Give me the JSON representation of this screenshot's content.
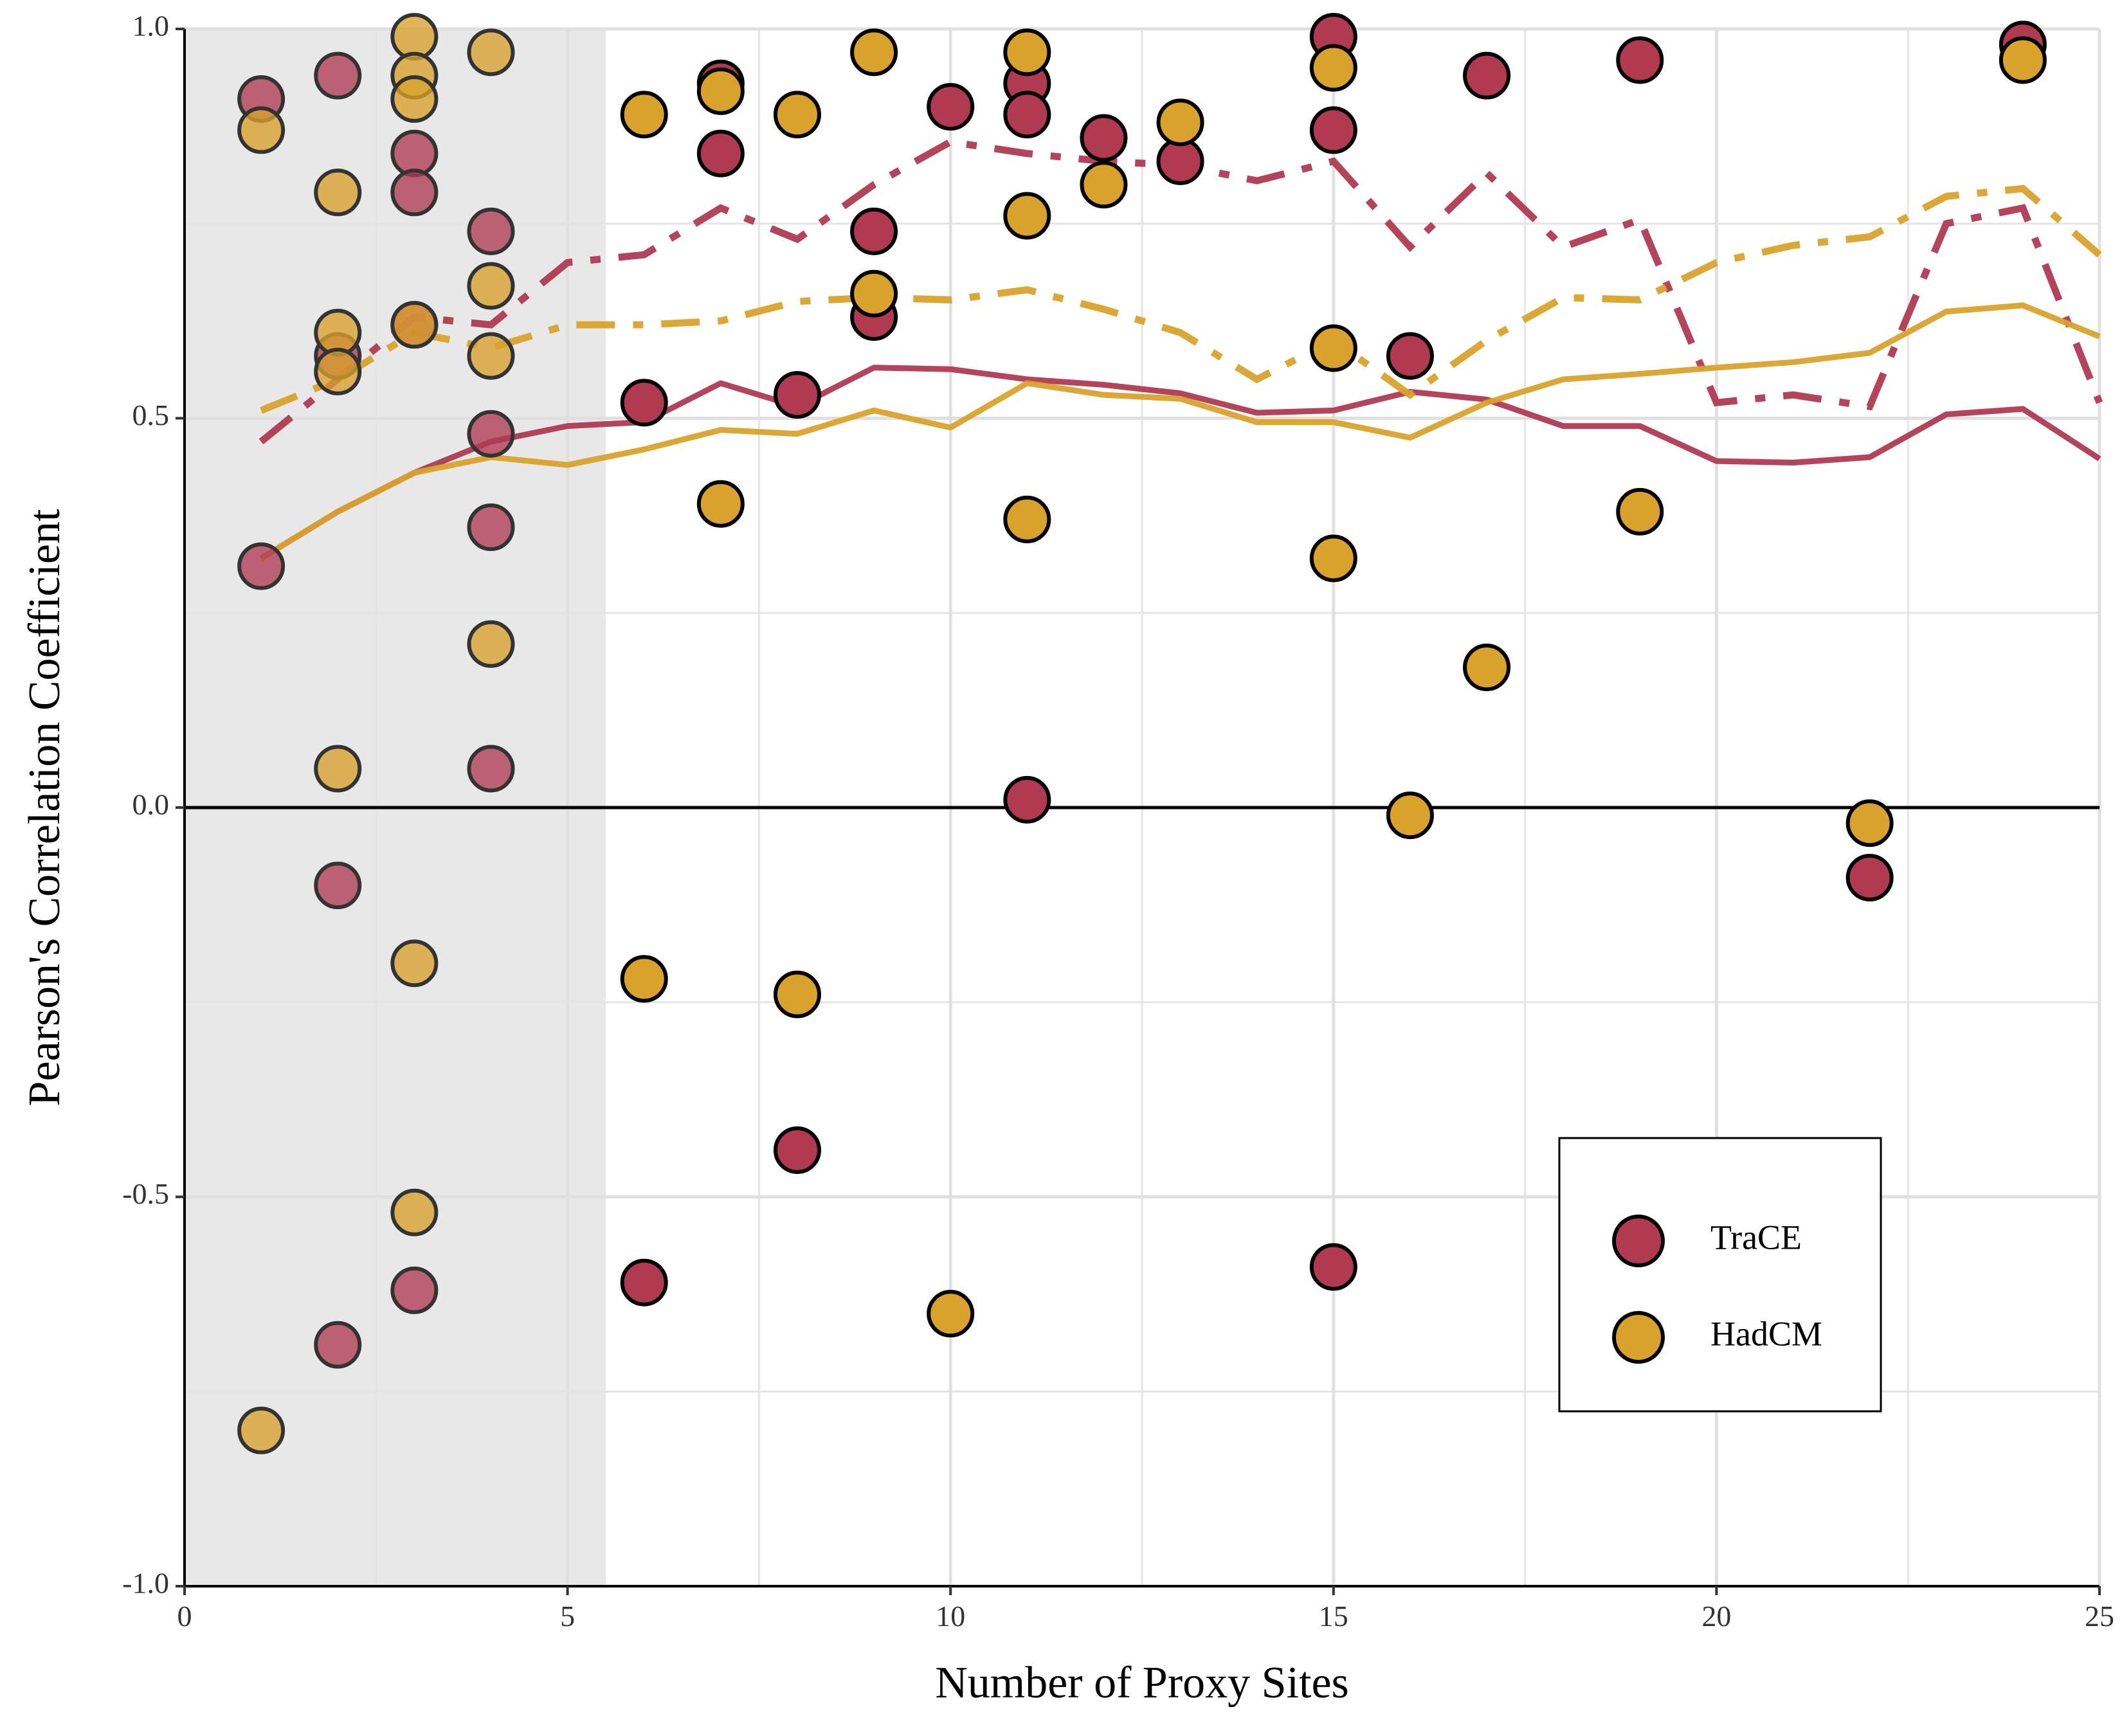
{
  "chart_data": {
    "type": "scatter",
    "xlabel": "Number of Proxy Sites",
    "ylabel": "Pearson's Correlation Coefficient",
    "xlim": [
      0,
      25
    ],
    "ylim": [
      -1.0,
      1.0
    ],
    "xticks": [
      0,
      5,
      10,
      15,
      20,
      25
    ],
    "xtick_labels": [
      "0",
      "5",
      "10",
      "15",
      "20",
      "25"
    ],
    "yticks": [
      -1.0,
      -0.5,
      0.0,
      0.5,
      1.0
    ],
    "ytick_labels": [
      "-1.0",
      "-0.5",
      "0.0",
      "0.5",
      "1.0"
    ],
    "grid": true,
    "zero_line": true,
    "shaded_region": {
      "x_from": 0,
      "x_to": 5.5,
      "color": "#e8e8e8"
    },
    "legend": {
      "position": "bottom-right",
      "entries": [
        "TraCE",
        "HadCM"
      ]
    },
    "series": [
      {
        "name": "TraCE",
        "color": "#b03a52",
        "points": [
          [
            1,
            0.91
          ],
          [
            1,
            0.31
          ],
          [
            2,
            0.94
          ],
          [
            2,
            0.58
          ],
          [
            2,
            -0.1
          ],
          [
            2,
            -0.69
          ],
          [
            3,
            0.84
          ],
          [
            3,
            0.79
          ],
          [
            3,
            0.62
          ],
          [
            3,
            -0.62
          ],
          [
            4,
            0.74
          ],
          [
            4,
            0.48
          ],
          [
            4,
            0.36
          ],
          [
            4,
            0.05
          ],
          [
            6,
            0.52
          ],
          [
            6,
            -0.61
          ],
          [
            7,
            0.93
          ],
          [
            7,
            0.84
          ],
          [
            8,
            0.53
          ],
          [
            8,
            -0.44
          ],
          [
            9,
            0.74
          ],
          [
            9,
            0.63
          ],
          [
            10,
            0.9
          ],
          [
            11,
            0.93
          ],
          [
            11,
            0.89
          ],
          [
            11,
            0.01
          ],
          [
            12,
            0.86
          ],
          [
            13,
            0.83
          ],
          [
            15,
            0.99
          ],
          [
            15,
            0.87
          ],
          [
            15,
            -0.59
          ],
          [
            16,
            0.58
          ],
          [
            17,
            0.94
          ],
          [
            19,
            0.96
          ],
          [
            22,
            -0.09
          ],
          [
            24,
            0.98
          ]
        ],
        "median_line": [
          [
            1,
            0.32
          ],
          [
            2,
            0.38
          ],
          [
            3,
            0.43
          ],
          [
            4,
            0.47
          ],
          [
            5,
            0.49
          ],
          [
            6,
            0.495
          ],
          [
            7,
            0.545
          ],
          [
            8,
            0.515
          ],
          [
            9,
            0.565
          ],
          [
            10,
            0.563
          ],
          [
            11,
            0.55
          ],
          [
            12,
            0.543
          ],
          [
            13,
            0.532
          ],
          [
            14,
            0.507
          ],
          [
            15,
            0.51
          ],
          [
            16,
            0.534
          ],
          [
            17,
            0.524
          ],
          [
            18,
            0.49
          ],
          [
            19,
            0.49
          ],
          [
            20,
            0.445
          ],
          [
            21,
            0.443
          ],
          [
            22,
            0.45
          ],
          [
            23,
            0.505
          ],
          [
            24,
            0.512
          ],
          [
            25,
            0.448
          ]
        ],
        "dashed_line": [
          [
            1,
            0.47
          ],
          [
            2,
            0.55
          ],
          [
            3,
            0.63
          ],
          [
            4,
            0.62
          ],
          [
            5,
            0.7
          ],
          [
            6,
            0.71
          ],
          [
            7,
            0.77
          ],
          [
            8,
            0.73
          ],
          [
            9,
            0.8
          ],
          [
            10,
            0.855
          ],
          [
            11,
            0.84
          ],
          [
            12,
            0.83
          ],
          [
            13,
            0.825
          ],
          [
            14,
            0.805
          ],
          [
            15,
            0.83
          ],
          [
            16,
            0.72
          ],
          [
            17,
            0.815
          ],
          [
            18,
            0.72
          ],
          [
            19,
            0.755
          ],
          [
            20,
            0.52
          ],
          [
            21,
            0.53
          ],
          [
            22,
            0.515
          ],
          [
            23,
            0.75
          ],
          [
            24,
            0.77
          ],
          [
            25,
            0.52
          ]
        ]
      },
      {
        "name": "HadCM",
        "color": "#d9a22c",
        "points": [
          [
            1,
            0.87
          ],
          [
            1,
            -0.8
          ],
          [
            2,
            0.79
          ],
          [
            2,
            0.61
          ],
          [
            2,
            0.56
          ],
          [
            2,
            0.05
          ],
          [
            3,
            0.99
          ],
          [
            3,
            0.94
          ],
          [
            3,
            0.91
          ],
          [
            3,
            0.62
          ],
          [
            3,
            -0.2
          ],
          [
            3,
            -0.52
          ],
          [
            4,
            0.97
          ],
          [
            4,
            0.67
          ],
          [
            4,
            0.58
          ],
          [
            4,
            0.21
          ],
          [
            6,
            0.89
          ],
          [
            6,
            -0.22
          ],
          [
            7,
            0.92
          ],
          [
            7,
            0.39
          ],
          [
            8,
            0.89
          ],
          [
            8,
            -0.24
          ],
          [
            9,
            0.97
          ],
          [
            9,
            0.66
          ],
          [
            10,
            -0.65
          ],
          [
            11,
            0.97
          ],
          [
            11,
            0.76
          ],
          [
            11,
            0.37
          ],
          [
            12,
            0.8
          ],
          [
            13,
            0.88
          ],
          [
            15,
            0.95
          ],
          [
            15,
            0.59
          ],
          [
            15,
            0.32
          ],
          [
            16,
            -0.01
          ],
          [
            17,
            0.18
          ],
          [
            19,
            0.38
          ],
          [
            22,
            -0.02
          ],
          [
            24,
            0.96
          ]
        ],
        "median_line": [
          [
            1,
            0.32
          ],
          [
            2,
            0.38
          ],
          [
            3,
            0.43
          ],
          [
            4,
            0.45
          ],
          [
            5,
            0.44
          ],
          [
            6,
            0.46
          ],
          [
            7,
            0.485
          ],
          [
            8,
            0.48
          ],
          [
            9,
            0.51
          ],
          [
            10,
            0.488
          ],
          [
            11,
            0.545
          ],
          [
            12,
            0.53
          ],
          [
            13,
            0.525
          ],
          [
            14,
            0.495
          ],
          [
            15,
            0.495
          ],
          [
            16,
            0.475
          ],
          [
            17,
            0.52
          ],
          [
            18,
            0.55
          ],
          [
            19,
            0.557
          ],
          [
            20,
            0.565
          ],
          [
            21,
            0.572
          ],
          [
            22,
            0.584
          ],
          [
            23,
            0.637
          ],
          [
            24,
            0.645
          ],
          [
            25,
            0.605
          ]
        ],
        "dashed_line": [
          [
            1,
            0.51
          ],
          [
            2,
            0.55
          ],
          [
            3,
            0.61
          ],
          [
            4,
            0.59
          ],
          [
            5,
            0.62
          ],
          [
            6,
            0.62
          ],
          [
            7,
            0.625
          ],
          [
            8,
            0.65
          ],
          [
            9,
            0.655
          ],
          [
            10,
            0.652
          ],
          [
            11,
            0.665
          ],
          [
            12,
            0.64
          ],
          [
            13,
            0.61
          ],
          [
            14,
            0.55
          ],
          [
            15,
            0.6
          ],
          [
            16,
            0.53
          ],
          [
            17,
            0.6
          ],
          [
            18,
            0.655
          ],
          [
            19,
            0.652
          ],
          [
            20,
            0.7
          ],
          [
            21,
            0.722
          ],
          [
            22,
            0.733
          ],
          [
            23,
            0.785
          ],
          [
            24,
            0.795
          ],
          [
            25,
            0.71
          ]
        ]
      }
    ]
  }
}
